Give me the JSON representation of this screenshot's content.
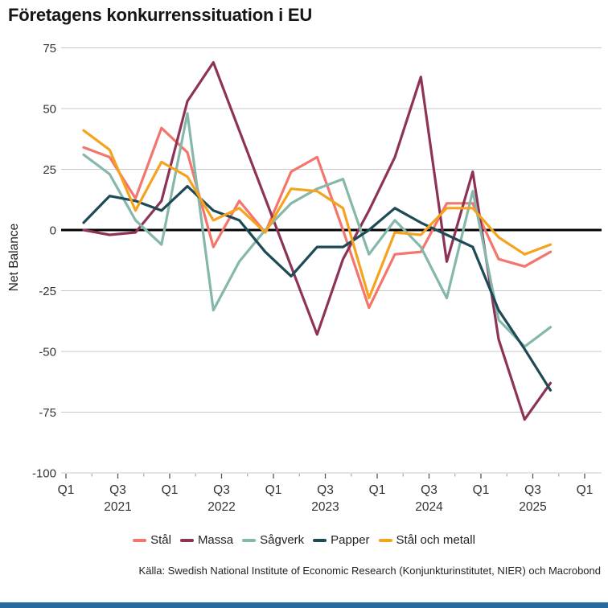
{
  "title": "Företagens konkurrenssituation i EU",
  "source": "Källa: Swedish National Institute of Economic Research (Konjunkturinstitutet, NIER) och Macrobond",
  "brand_bar_color": "#256ba2",
  "chart_data": {
    "type": "line",
    "title": "Företagens konkurrenssituation i EU",
    "xlabel": "",
    "ylabel": "Net Balance",
    "ylim": [
      -100,
      75
    ],
    "yticks": [
      75,
      50,
      25,
      0,
      -25,
      -50,
      -75,
      -100
    ],
    "grid": true,
    "legend_position": "bottom",
    "x": [
      "2021 Q1",
      "2021 Q2",
      "2021 Q3",
      "2021 Q4",
      "2022 Q1",
      "2022 Q2",
      "2022 Q3",
      "2022 Q4",
      "2023 Q1",
      "2023 Q2",
      "2023 Q3",
      "2023 Q4",
      "2024 Q1",
      "2024 Q2",
      "2024 Q3",
      "2024 Q4",
      "2025 Q1",
      "2025 Q2",
      "2025 Q3"
    ],
    "x_axis": {
      "major_tick_labels": [
        "Q1",
        "Q3",
        "Q1",
        "Q3",
        "Q1",
        "Q3",
        "Q1",
        "Q3",
        "Q1",
        "Q3",
        "Q1"
      ],
      "year_labels": [
        "2021",
        "2022",
        "2023",
        "2024",
        "2025"
      ]
    },
    "series": [
      {
        "name": "Stål",
        "color": "#f3756c",
        "values": [
          34,
          30,
          13,
          42,
          32,
          -7,
          12,
          -1,
          24,
          30,
          0,
          -32,
          -10,
          -9,
          11,
          11,
          -12,
          -15,
          -9
        ]
      },
      {
        "name": "Massa",
        "color": "#8e3358",
        "values": [
          0,
          -2,
          -1,
          12,
          53,
          69,
          41,
          13,
          -15,
          -43,
          -12,
          8,
          30,
          63,
          -13,
          24,
          -45,
          -78,
          -63
        ]
      },
      {
        "name": "Sågverk",
        "color": "#85b8ab",
        "values": [
          31,
          23,
          4,
          -6,
          48,
          -33,
          -13,
          0,
          11,
          17,
          21,
          -10,
          4,
          -7,
          -28,
          16,
          -37,
          -48,
          -40
        ]
      },
      {
        "name": "Papper",
        "color": "#1d4a55",
        "values": [
          3,
          14,
          12,
          8,
          18,
          8,
          4,
          -9,
          -19,
          -7,
          -7,
          0,
          9,
          3,
          -2,
          -7,
          -33,
          -49,
          -66
        ]
      },
      {
        "name": "Stål och metall",
        "color": "#f5a31f",
        "values": [
          41,
          33,
          8,
          28,
          22,
          4,
          9,
          -1,
          17,
          16,
          9,
          -28,
          -1,
          -2,
          9,
          9,
          -3,
          -10,
          -6
        ]
      }
    ],
    "gridline_color": "#c8c8c8",
    "zero_line_color": "#000000",
    "tick_color": "#555555",
    "minor_tick_color": "#aaaaaa",
    "axis_text_color": "#333333"
  }
}
